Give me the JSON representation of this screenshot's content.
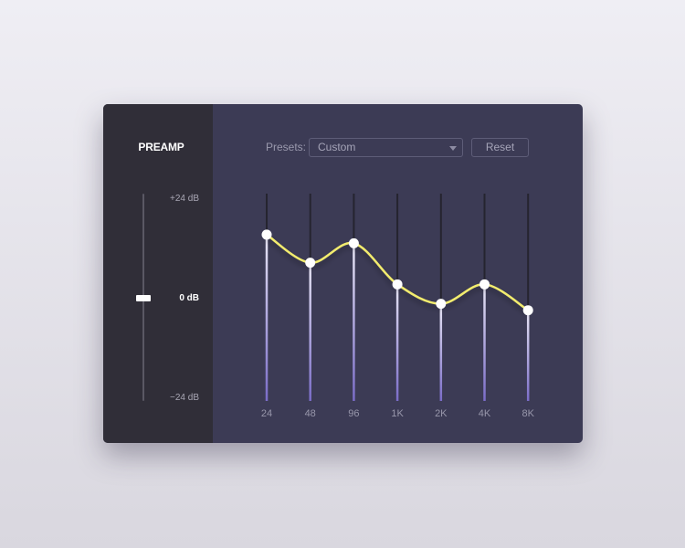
{
  "preamp": {
    "title": "PREAMP",
    "max_label": "+24 dB",
    "zero_label": "0 dB",
    "min_label": "−24 dB",
    "value_db": 0
  },
  "header": {
    "presets_label": "Presets:",
    "preset_value": "Custom",
    "reset_label": "Reset"
  },
  "range_db": [
    -24,
    24
  ],
  "colors": {
    "curve": "#f2ec6e",
    "track_fill": "#7a6cc8",
    "track_empty": "#25242f",
    "knob": "#ffffff"
  },
  "bands": [
    {
      "label": "24",
      "gain_db": 14.5
    },
    {
      "label": "48",
      "gain_db": 8
    },
    {
      "label": "96",
      "gain_db": 12.5
    },
    {
      "label": "1K",
      "gain_db": 3
    },
    {
      "label": "2K",
      "gain_db": -1.5
    },
    {
      "label": "4K",
      "gain_db": 3
    },
    {
      "label": "8K",
      "gain_db": -3
    }
  ]
}
